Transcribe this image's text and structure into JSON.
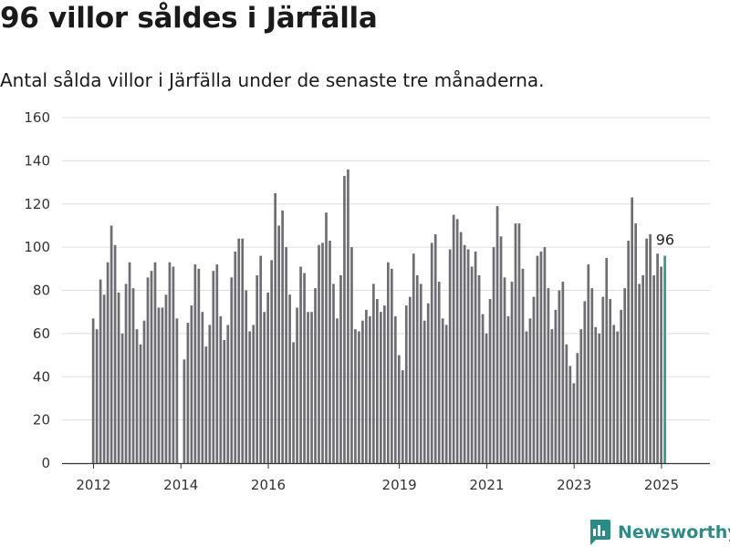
{
  "header": {
    "title": "96 villor såldes i Järfälla",
    "subtitle": "Antal sålda villor i Järfälla under de senaste tre månaderna."
  },
  "colors": {
    "bar": "#6d6d72",
    "highlight": "#2a9d8f",
    "grid": "#dedede",
    "axis": "#333333",
    "brand": "#2a8c86"
  },
  "brand": {
    "name": "Newsworthy",
    "icon": "bar-chart-pin-icon"
  },
  "chart_data": {
    "type": "bar",
    "title": "96 villor såldes i Järfälla",
    "subtitle": "Antal sålda villor i Järfälla under de senaste tre månaderna.",
    "xlabel": "",
    "ylabel": "",
    "ylim": [
      0,
      160
    ],
    "yticks": [
      0,
      20,
      40,
      60,
      80,
      100,
      120,
      140,
      160
    ],
    "grid": true,
    "legend": "none",
    "x_start": "2012-01",
    "x_end": "2025-03",
    "xticks": [
      {
        "label": "2012",
        "month": "2012-01"
      },
      {
        "label": "2014",
        "month": "2014-01"
      },
      {
        "label": "2016",
        "month": "2016-01"
      },
      {
        "label": "2019",
        "month": "2019-01"
      },
      {
        "label": "2021",
        "month": "2021-01"
      },
      {
        "label": "2023",
        "month": "2023-01"
      },
      {
        "label": "2025",
        "month": "2025-01"
      }
    ],
    "series": [
      {
        "values": [
          67,
          62,
          85,
          78,
          93,
          110,
          101,
          79,
          60,
          83,
          93,
          81,
          62,
          55,
          66,
          86,
          89,
          93,
          72,
          72,
          78,
          93,
          91,
          67,
          null,
          48,
          65,
          73,
          92,
          90,
          70,
          54,
          64,
          89,
          92,
          68,
          57,
          64,
          86,
          98,
          104,
          104,
          80,
          61,
          64,
          87,
          96,
          70,
          79,
          94,
          125,
          110,
          117,
          100,
          78,
          56,
          72,
          91,
          88,
          70,
          70,
          81,
          101,
          102,
          116,
          103,
          83,
          67,
          87,
          133,
          136,
          100,
          62,
          61,
          66,
          71,
          68,
          83,
          76,
          70,
          73,
          93,
          90,
          68,
          50,
          43,
          73,
          77,
          97,
          87,
          83,
          66,
          74,
          102,
          106,
          84,
          67,
          64,
          99,
          115,
          113,
          107,
          101,
          99,
          91,
          98,
          87,
          69,
          60,
          76,
          100,
          119,
          105,
          86,
          68,
          84,
          111,
          111,
          90,
          61,
          67,
          77,
          96,
          98,
          100,
          81,
          62,
          71,
          80,
          84,
          55,
          45,
          37,
          51,
          62,
          75,
          92,
          81,
          63,
          60,
          77,
          95,
          76,
          64,
          61,
          71,
          81,
          103,
          123,
          111,
          83,
          87,
          104,
          106,
          87,
          97,
          91,
          96
        ]
      }
    ],
    "highlight_last": true,
    "annotations": [
      {
        "text": "96"
      }
    ]
  }
}
